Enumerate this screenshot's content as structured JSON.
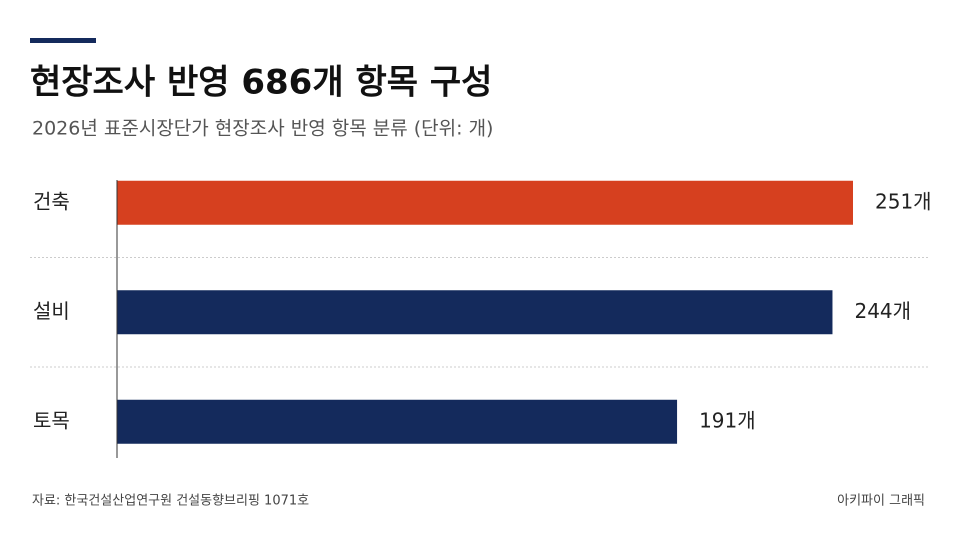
{
  "chart_data": {
    "type": "bar",
    "orientation": "horizontal",
    "title": "현장조사 반영 686개 항목 구성",
    "subtitle": "2026년 표준시장단가 현장조사 반영 항목 분류 (단위: 개)",
    "categories": [
      "건축",
      "설비",
      "토목"
    ],
    "values": [
      251,
      244,
      191
    ],
    "value_labels": [
      "251개",
      "244개",
      "191개"
    ],
    "colors": [
      "#d6401f",
      "#142a5c",
      "#142a5c"
    ],
    "source": "자료: 한국건설산업연구원 건설동향브리핑 1071호",
    "credit": "아키파이 그래픽"
  }
}
